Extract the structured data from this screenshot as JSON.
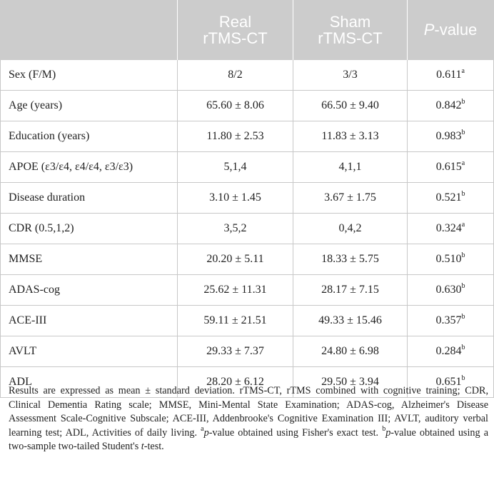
{
  "table": {
    "headers": {
      "col1": "",
      "col2_line1": "Real",
      "col2_line2": "rTMS-CT",
      "col3_line1": "Sham",
      "col3_line2": "rTMS-CT",
      "col4_italic": "P",
      "col4_rest": "-value"
    },
    "rows": [
      {
        "label": "Sex (F/M)",
        "real": "8/2",
        "sham": "3/3",
        "p": "0.611",
        "sup": "a"
      },
      {
        "label": "Age (years)",
        "real": "65.60 ± 8.06",
        "sham": "66.50 ± 9.40",
        "p": "0.842",
        "sup": "b"
      },
      {
        "label": "Education (years)",
        "real": "11.80 ± 2.53",
        "sham": "11.83 ± 3.13",
        "p": "0.983",
        "sup": "b"
      },
      {
        "label": "APOE (ε3/ε4, ε4/ε4, ε3/ε3)",
        "real": "5,1,4",
        "sham": "4,1,1",
        "p": "0.615",
        "sup": "a"
      },
      {
        "label": "Disease duration",
        "real": "3.10 ± 1.45",
        "sham": "3.67 ± 1.75",
        "p": "0.521",
        "sup": "b"
      },
      {
        "label": "CDR (0.5,1,2)",
        "real": "3,5,2",
        "sham": "0,4,2",
        "p": "0.324",
        "sup": "a"
      },
      {
        "label": "MMSE",
        "real": "20.20 ± 5.11",
        "sham": "18.33 ± 5.75",
        "p": "0.510",
        "sup": "b"
      },
      {
        "label": "ADAS-cog",
        "real": "25.62 ± 11.31",
        "sham": "28.17 ± 7.15",
        "p": "0.630",
        "sup": "b"
      },
      {
        "label": "ACE-III",
        "real": "59.11 ± 21.51",
        "sham": "49.33 ± 15.46",
        "p": "0.357",
        "sup": "b"
      },
      {
        "label": "AVLT",
        "real": "29.33 ± 7.37",
        "sham": "24.80 ± 6.98",
        "p": "0.284",
        "sup": "b"
      },
      {
        "label": "ADL",
        "real": "28.20 ± 6.12",
        "sham": "29.50 ± 3.94",
        "p": "0.651",
        "sup": "b"
      }
    ]
  },
  "footnote": {
    "main": "Results are expressed as mean ± standard deviation. rTMS-CT, rTMS combined with cognitive training; CDR, Clinical Dementia Rating scale; MMSE, Mini-Mental State Examination; ADAS-cog, Alzheimer's Disease Assessment Scale-Cognitive Subscale; ACE-III, Addenbrooke's Cognitive Examination III; AVLT, auditory verbal learning test; ADL, Activities of daily living.",
    "a_sup": "a",
    "a_italic": "p",
    "a_text": "-value obtained using Fisher's exact test.",
    "b_sup": "b",
    "b_italic": "p",
    "b_text": "-value obtained using a two-sample two-tailed Student's ",
    "b_t": "t",
    "b_end": "-test."
  }
}
